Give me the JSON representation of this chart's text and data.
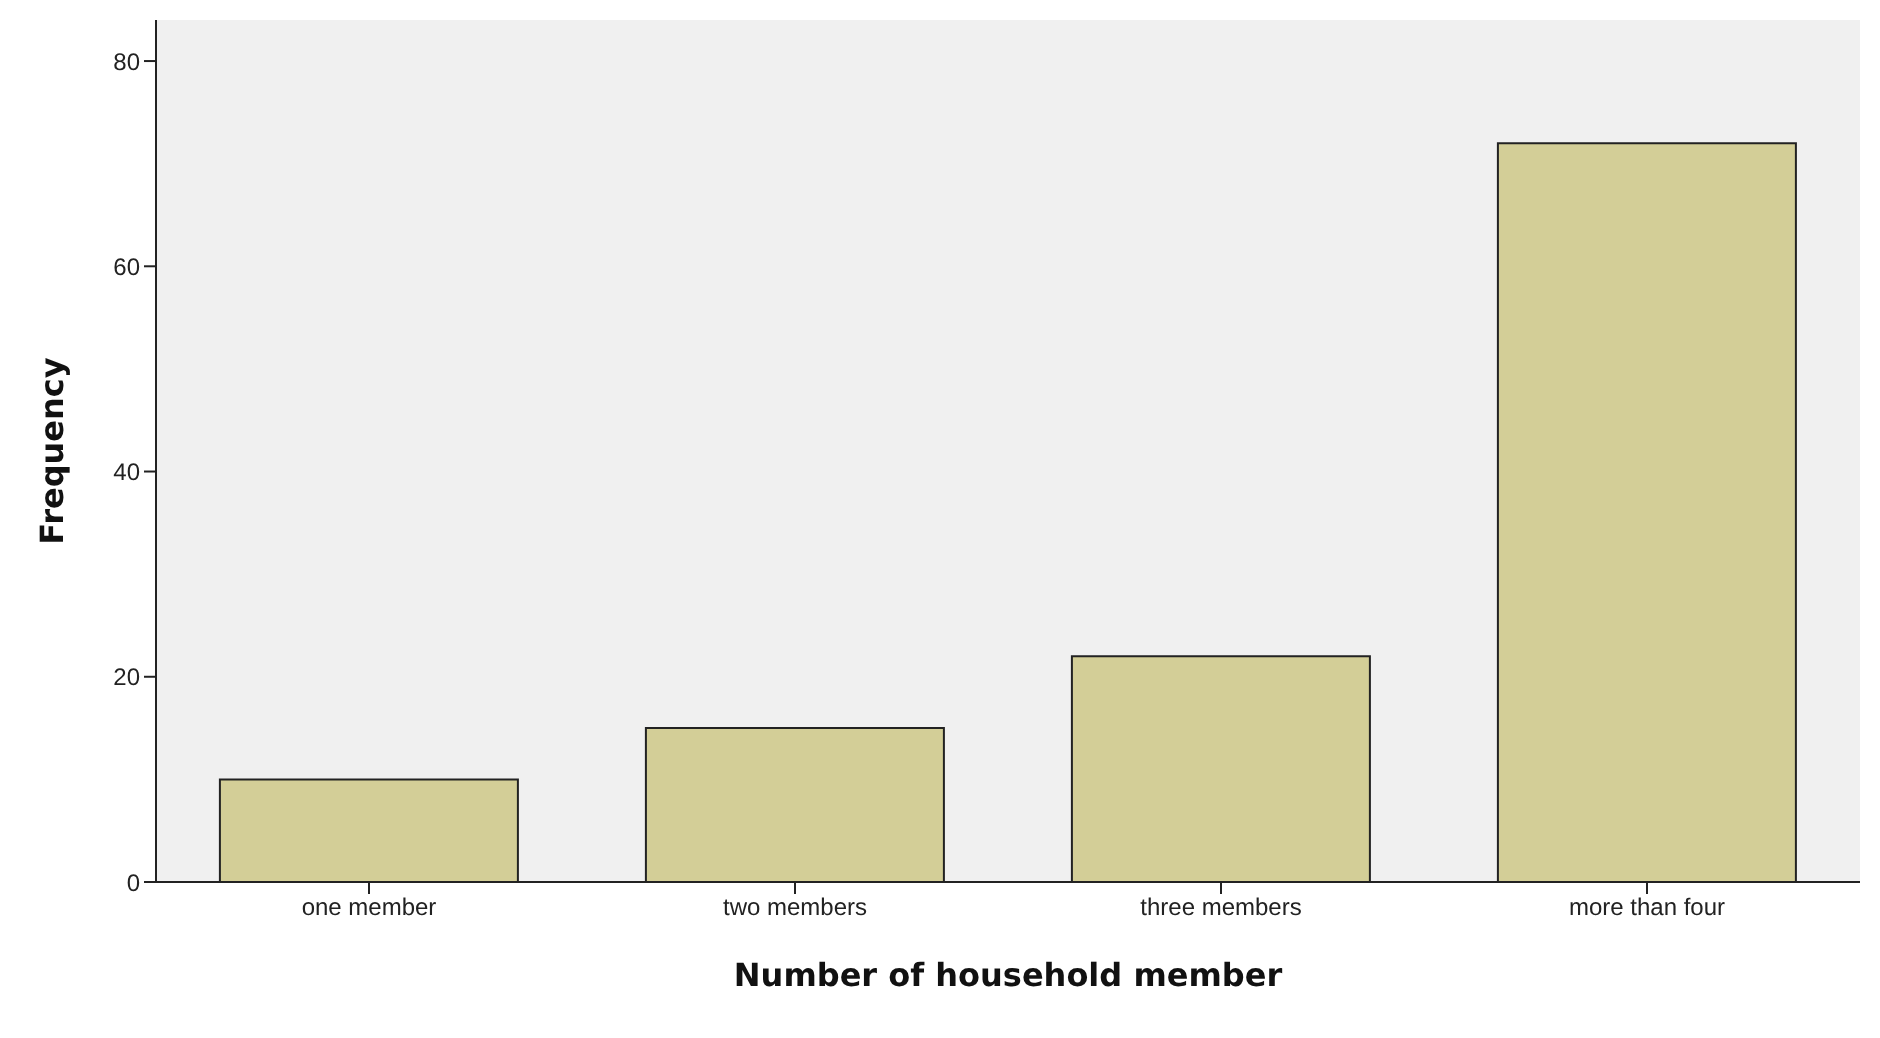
{
  "chart_data": {
    "type": "bar",
    "xlabel": "Number of household member",
    "ylabel": "Frequency",
    "categories": [
      "one member",
      "two members",
      "three members",
      "more than four"
    ],
    "values": [
      10,
      15,
      22,
      72
    ],
    "color": "#d3ce97",
    "ylim": [
      0,
      84
    ],
    "yticks": [
      0,
      20,
      40,
      60,
      80
    ],
    "grid": false
  }
}
